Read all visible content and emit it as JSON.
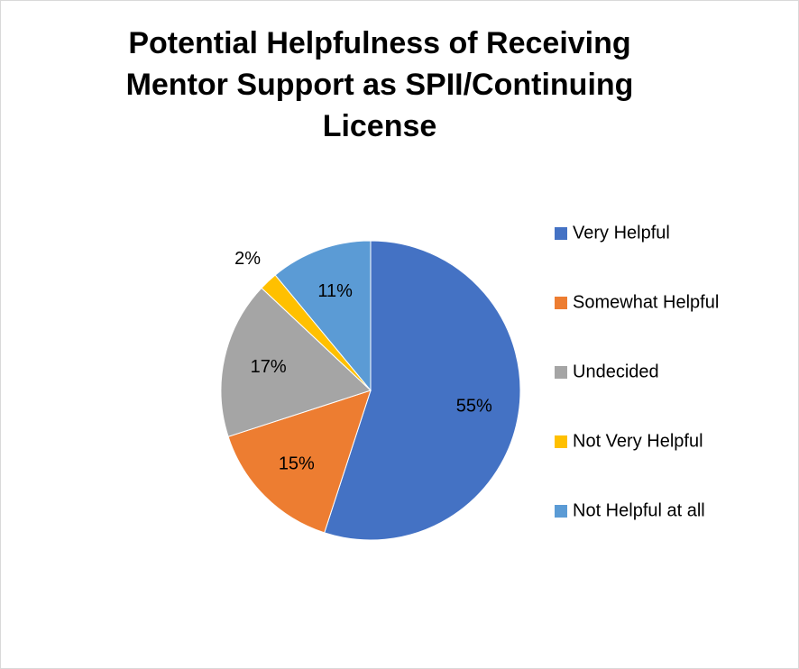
{
  "chart_data": {
    "type": "pie",
    "title": "Potential Helpfulness of Receiving Mentor Support as SPII/Continuing License",
    "categories": [
      "Very Helpful",
      "Somewhat Helpful",
      "Undecided",
      "Not Very Helpful",
      "Not Helpful at all"
    ],
    "values": [
      55,
      15,
      17,
      2,
      11
    ],
    "value_labels": [
      "55%",
      "15%",
      "17%",
      "2%",
      "11%"
    ],
    "colors": [
      "#4472c4",
      "#ed7d31",
      "#a5a5a5",
      "#ffc000",
      "#5b9bd5"
    ],
    "legend": "right"
  }
}
